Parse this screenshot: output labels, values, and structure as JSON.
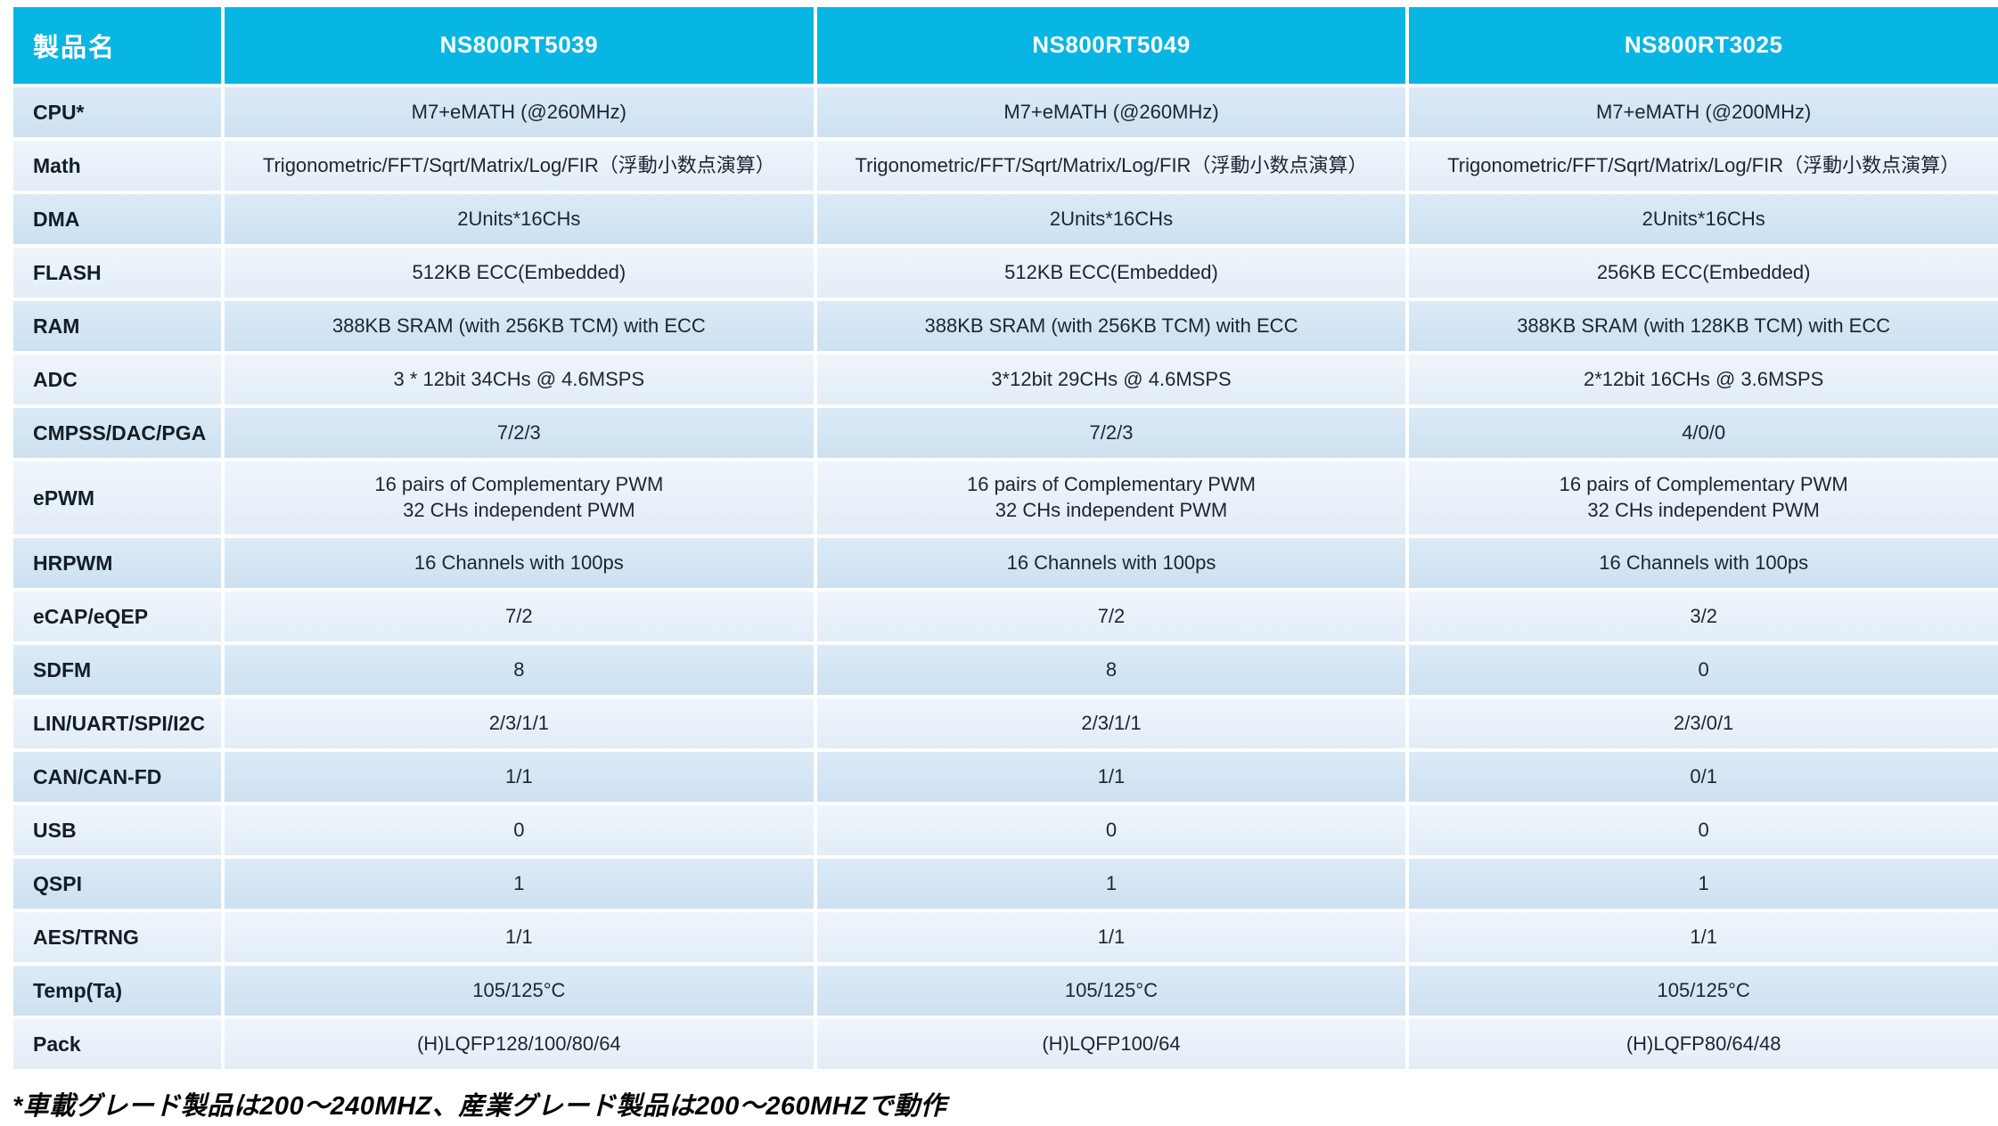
{
  "table": {
    "header": [
      "製品名",
      "NS800RT5039",
      "NS800RT5049",
      "NS800RT3025"
    ],
    "rows": [
      {
        "label": "CPU*",
        "values": [
          "M7+eMATH (@260MHz)",
          "M7+eMATH (@260MHz)",
          "M7+eMATH (@200MHz)"
        ]
      },
      {
        "label": "Math",
        "values": [
          "Trigonometric/FFT/Sqrt/Matrix/Log/FIR（浮動小数点演算）",
          "Trigonometric/FFT/Sqrt/Matrix/Log/FIR（浮動小数点演算）",
          "Trigonometric/FFT/Sqrt/Matrix/Log/FIR（浮動小数点演算）"
        ]
      },
      {
        "label": "DMA",
        "values": [
          "2Units*16CHs",
          "2Units*16CHs",
          "2Units*16CHs"
        ]
      },
      {
        "label": "FLASH",
        "values": [
          "512KB ECC(Embedded)",
          "512KB ECC(Embedded)",
          "256KB ECC(Embedded)"
        ]
      },
      {
        "label": "RAM",
        "values": [
          "388KB SRAM (with 256KB TCM) with ECC",
          "388KB SRAM (with 256KB TCM) with ECC",
          "388KB SRAM (with 128KB TCM) with ECC"
        ]
      },
      {
        "label": "ADC",
        "values": [
          "3 * 12bit 34CHs @ 4.6MSPS",
          "3*12bit 29CHs @ 4.6MSPS",
          "2*12bit 16CHs @ 3.6MSPS"
        ]
      },
      {
        "label": "CMPSS/DAC/PGA",
        "values": [
          "7/2/3",
          "7/2/3",
          "4/0/0"
        ]
      },
      {
        "label": "ePWM",
        "values": [
          "16 pairs of Complementary PWM\n32 CHs independent PWM",
          "16 pairs of Complementary PWM\n32 CHs independent PWM",
          "16 pairs of Complementary PWM\n32 CHs independent PWM"
        ]
      },
      {
        "label": "HRPWM",
        "values": [
          "16 Channels with 100ps",
          "16 Channels with 100ps",
          "16 Channels with 100ps"
        ]
      },
      {
        "label": "eCAP/eQEP",
        "values": [
          "7/2",
          "7/2",
          "3/2"
        ]
      },
      {
        "label": "SDFM",
        "values": [
          "8",
          "8",
          "0"
        ]
      },
      {
        "label": "LIN/UART/SPI/I2C",
        "values": [
          "2/3/1/1",
          "2/3/1/1",
          "2/3/0/1"
        ]
      },
      {
        "label": "CAN/CAN-FD",
        "values": [
          "1/1",
          "1/1",
          "0/1"
        ]
      },
      {
        "label": "USB",
        "values": [
          "0",
          "0",
          "0"
        ]
      },
      {
        "label": "QSPI",
        "values": [
          "1",
          "1",
          "1"
        ]
      },
      {
        "label": "AES/TRNG",
        "values": [
          "1/1",
          "1/1",
          "1/1"
        ]
      },
      {
        "label": "Temp(Ta)",
        "values": [
          "105/125°C",
          "105/125°C",
          "105/125°C"
        ]
      },
      {
        "label": "Pack",
        "values": [
          "(H)LQFP128/100/80/64",
          "(H)LQFP100/64",
          "(H)LQFP80/64/48"
        ]
      }
    ]
  },
  "footnote": "*車載グレード製品は200〜240MHZ、産業グレード製品は200〜260MHZで動作",
  "colors": {
    "header_bg": "#07b6e3",
    "row_dark": "#cde1f1",
    "row_light": "#e8f1f9",
    "separator": "#ffffff"
  }
}
